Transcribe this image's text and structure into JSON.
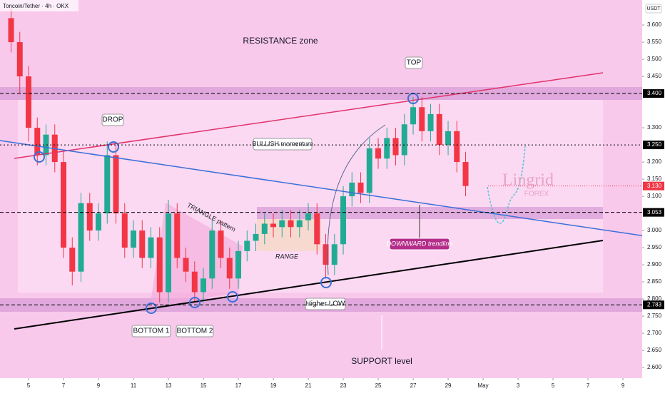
{
  "chart_data": {
    "type": "candlestick",
    "title": "Toncoin/Tether · 4h · OKX",
    "currency": "USDT",
    "watermark": [
      "Lingrid",
      "FOREX"
    ],
    "annotations": {
      "resistance": "RESISTANCE zone",
      "top": "TOP",
      "drop": "DROP",
      "bullish": "BULLISH momentum",
      "triangle": "TRIANGLE pattern",
      "range": "RANGE",
      "downward": "DOWNWARD trendline",
      "higher_low": "Higher LOW",
      "bottom1": "BOTTOM 1",
      "bottom2": "BOTTOM 2",
      "support": "SUPPORT level"
    },
    "up_color": "#22ab94",
    "down_color": "#f23645",
    "x": [
      4.0,
      4.5,
      5.0,
      5.5,
      6.0,
      6.5,
      7.0,
      7.5,
      8.0,
      8.5,
      9.0,
      9.5,
      10.0,
      10.5,
      11.0,
      11.5,
      12.0,
      12.5,
      13.0,
      13.5,
      14.0,
      14.5,
      15.0,
      15.5,
      16.0,
      16.5,
      17.0,
      17.5,
      18.0,
      18.5,
      19.0,
      19.5,
      20.0,
      20.5,
      21.0,
      21.5,
      22.0,
      22.5,
      23.0,
      23.5,
      24.0,
      24.5,
      25.0,
      25.5,
      26.0,
      26.5,
      27.0,
      27.5,
      28.0,
      28.5,
      29.0,
      29.5,
      30.0
    ],
    "open": [
      3.62,
      3.55,
      3.45,
      3.3,
      3.22,
      3.28,
      3.2,
      2.95,
      2.88,
      3.08,
      3.0,
      3.05,
      3.22,
      3.05,
      2.95,
      3.0,
      2.92,
      2.98,
      2.82,
      3.05,
      2.92,
      2.88,
      2.82,
      2.86,
      3.0,
      2.92,
      2.86,
      2.94,
      2.97,
      2.99,
      3.02,
      3.01,
      3.03,
      3.01,
      3.03,
      3.05,
      2.96,
      2.9,
      2.96,
      3.1,
      3.14,
      3.11,
      3.24,
      3.21,
      3.27,
      3.22,
      3.31,
      3.36,
      3.29,
      3.34,
      3.25,
      3.29,
      3.2
    ],
    "high": [
      3.65,
      3.58,
      3.48,
      3.33,
      3.31,
      3.31,
      3.23,
      2.98,
      3.11,
      3.11,
      3.08,
      3.26,
      3.25,
      3.08,
      3.03,
      3.03,
      3.01,
      3.01,
      3.09,
      3.08,
      2.95,
      2.91,
      2.89,
      3.03,
      3.03,
      2.95,
      2.97,
      3.0,
      3.02,
      3.05,
      3.05,
      3.06,
      3.06,
      3.06,
      3.08,
      3.08,
      2.99,
      2.99,
      3.13,
      3.17,
      3.17,
      3.27,
      3.27,
      3.3,
      3.3,
      3.34,
      3.39,
      3.39,
      3.37,
      3.37,
      3.32,
      3.32,
      3.23
    ],
    "low": [
      3.52,
      3.4,
      3.26,
      3.19,
      3.19,
      3.17,
      2.92,
      2.84,
      2.85,
      2.97,
      2.97,
      3.02,
      3.02,
      2.92,
      2.92,
      2.89,
      2.89,
      2.79,
      2.79,
      2.89,
      2.85,
      2.79,
      2.79,
      2.83,
      2.89,
      2.83,
      2.83,
      2.91,
      2.94,
      2.96,
      2.98,
      2.98,
      2.98,
      2.98,
      3.0,
      2.93,
      2.86,
      2.87,
      2.93,
      3.07,
      3.08,
      3.08,
      3.18,
      3.18,
      3.19,
      3.19,
      3.28,
      3.26,
      3.26,
      3.22,
      3.22,
      3.17,
      3.1
    ],
    "close": [
      3.55,
      3.45,
      3.3,
      3.22,
      3.28,
      3.2,
      2.95,
      2.88,
      3.08,
      3.0,
      3.05,
      3.22,
      3.05,
      2.95,
      3.0,
      2.92,
      2.98,
      2.82,
      3.05,
      2.92,
      2.88,
      2.82,
      2.86,
      3.0,
      2.92,
      2.86,
      2.94,
      2.97,
      2.99,
      3.02,
      3.01,
      3.03,
      3.01,
      3.03,
      3.05,
      2.96,
      2.9,
      2.96,
      3.1,
      3.14,
      3.11,
      3.24,
      3.21,
      3.27,
      3.22,
      3.31,
      3.36,
      3.29,
      3.34,
      3.25,
      3.29,
      3.2,
      3.13
    ],
    "xlim": [
      3.367,
      40.1
    ],
    "ylim": [
      2.569,
      3.673
    ],
    "xticks": [
      5,
      7,
      9,
      11,
      13,
      15,
      17,
      19,
      21,
      23,
      25,
      27,
      29,
      {
        "value": 31,
        "label": "May"
      },
      {
        "value": 33,
        "label": "3"
      },
      {
        "value": 35,
        "label": "5"
      },
      {
        "value": 37,
        "label": "7"
      },
      {
        "value": 39,
        "label": "9"
      }
    ],
    "yticks": [
      {
        "value": 3.6,
        "label": "3.600"
      },
      {
        "value": 3.55,
        "label": "3.550"
      },
      {
        "value": 3.5,
        "label": "3.500"
      },
      {
        "value": 3.45,
        "label": "3.450"
      },
      {
        "value": 3.3,
        "label": "3.300"
      },
      {
        "value": 3.2,
        "label": "3.200"
      },
      {
        "value": 3.15,
        "label": "3.150"
      },
      {
        "value": 3.1,
        "label": "3.100"
      },
      {
        "value": 3.0,
        "label": "3.000"
      },
      {
        "value": 2.95,
        "label": "2.950"
      },
      {
        "value": 2.9,
        "label": "2.900"
      },
      {
        "value": 2.85,
        "label": "2.850"
      },
      {
        "value": 2.8,
        "label": "2.800"
      },
      {
        "value": 2.75,
        "label": "2.750"
      },
      {
        "value": 2.7,
        "label": "2.700"
      },
      {
        "value": 2.65,
        "label": "2.650"
      },
      {
        "value": 2.6,
        "label": "2.600"
      }
    ],
    "levels": [
      {
        "value": 3.4,
        "label": "3.400"
      },
      {
        "value": 3.25,
        "label": "3.250"
      },
      {
        "value": 3.053,
        "label": "3.053"
      },
      {
        "value": 2.783,
        "label": "2.783"
      }
    ],
    "last_price": {
      "value": 3.13,
      "label": "3.130"
    }
  }
}
